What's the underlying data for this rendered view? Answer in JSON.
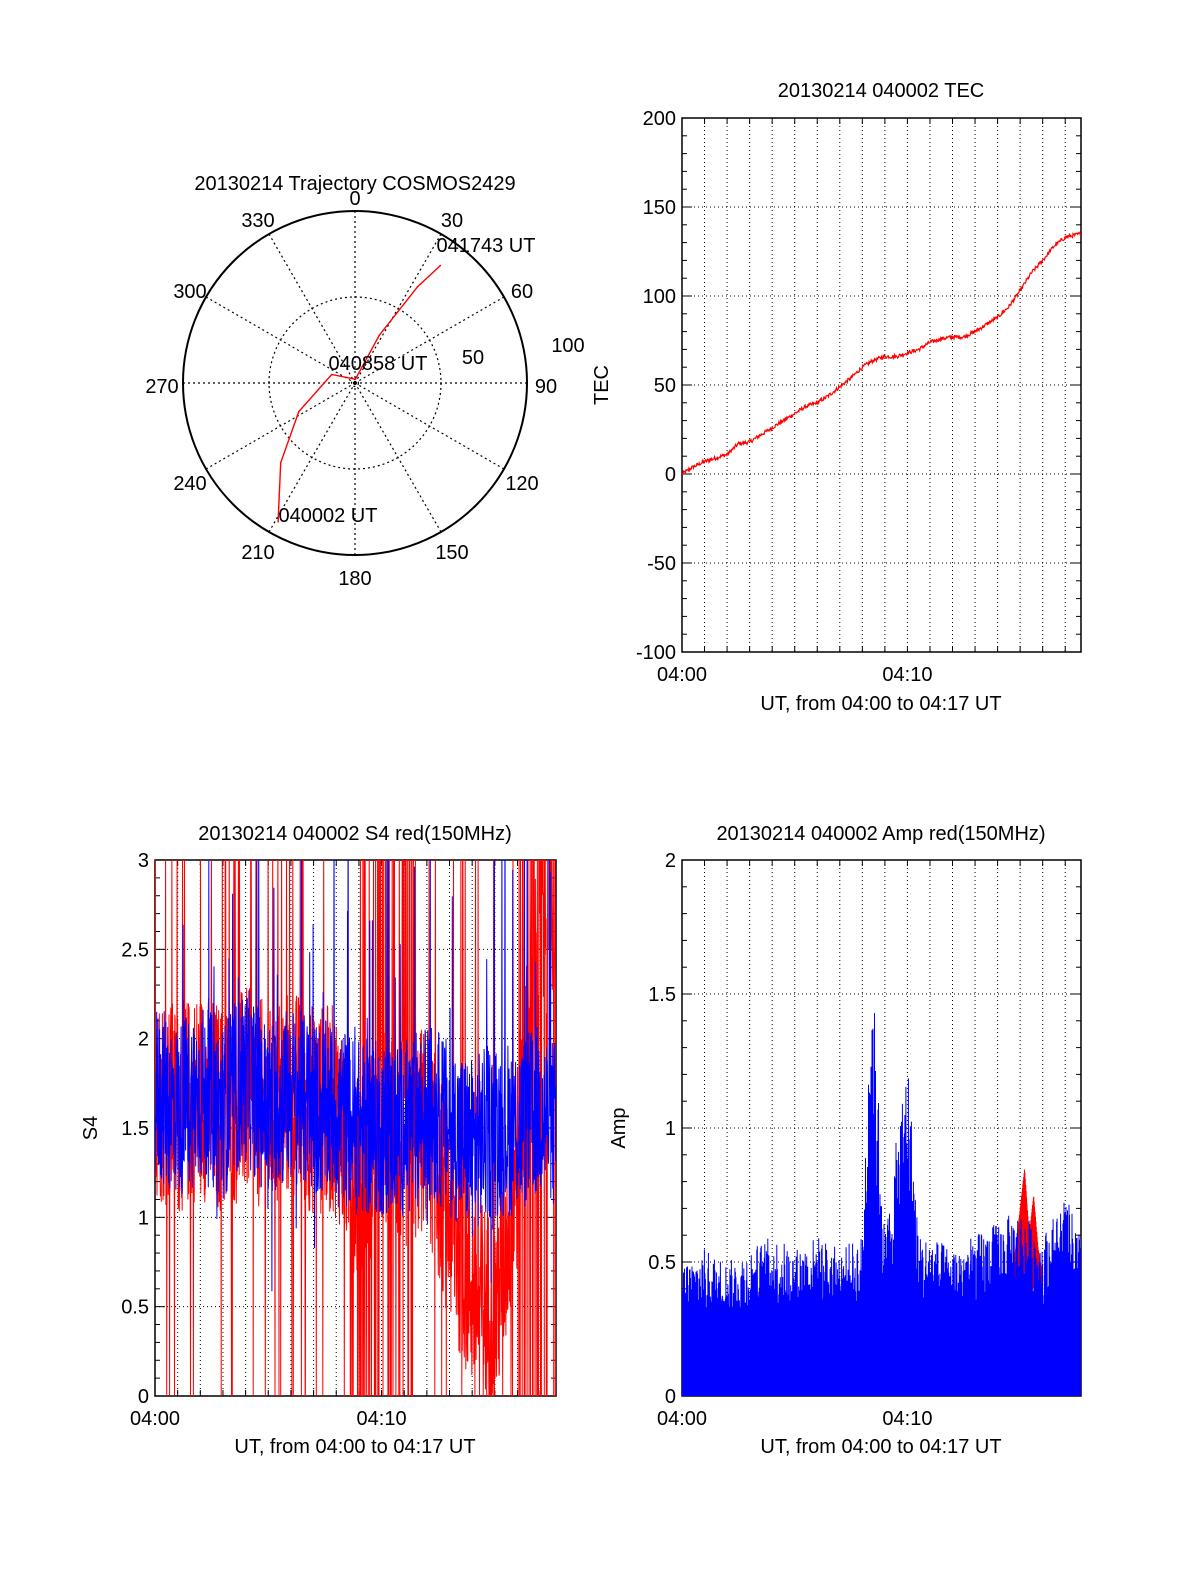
{
  "colors": {
    "red": "#ff0000",
    "blue": "#0000ff",
    "axis": "#000000",
    "grid": "#000000",
    "background": "#ffffff"
  },
  "chart_data": [
    {
      "type": "polar",
      "title": "20130214 Trajectory COSMOS2429",
      "angle_labels": [
        "0",
        "30",
        "60",
        "90",
        "120",
        "150",
        "180",
        "210",
        "240",
        "270",
        "300",
        "330"
      ],
      "radius_labels": [
        "50",
        "100"
      ],
      "grid": true,
      "series": [
        {
          "color": "red",
          "points": [
            {
              "azimuth": 209,
              "elevation": 7
            },
            {
              "azimuth": 223,
              "elevation": 33
            },
            {
              "azimuth": 243,
              "elevation": 57
            },
            {
              "azimuth": 290,
              "elevation": 77
            },
            {
              "azimuth": 6,
              "elevation": 88
            },
            {
              "azimuth": 27,
              "elevation": 62
            },
            {
              "azimuth": 33,
              "elevation": 30
            },
            {
              "azimuth": 36,
              "elevation": 14
            }
          ]
        }
      ],
      "annotations": [
        "040002 UT",
        "040858 UT",
        "041743 UT"
      ]
    },
    {
      "type": "line",
      "title": "20130214 040002 TEC",
      "xlabel": "UT, from 04:00 to 04:17 UT",
      "ylabel": "TEC",
      "x_ticks": [
        "04:00",
        "04:10"
      ],
      "y_ticks": [
        "-100",
        "-50",
        "0",
        "50",
        "100",
        "150",
        "200"
      ],
      "xlim": [
        0,
        17.7
      ],
      "ylim": [
        -100,
        200
      ],
      "grid": true,
      "series": [
        {
          "color": "red",
          "x": [
            0,
            0.5,
            1,
            1.5,
            2,
            2.5,
            3,
            3.5,
            4,
            4.5,
            5,
            5.5,
            6,
            6.5,
            7,
            7.5,
            8,
            8.5,
            9,
            9.5,
            10,
            10.5,
            11,
            11.5,
            12,
            12.5,
            13,
            13.5,
            14,
            14.5,
            15,
            15.5,
            16,
            16.5,
            17,
            17.7
          ],
          "y": [
            0,
            4,
            7,
            9,
            11,
            17,
            18,
            22,
            26,
            30,
            34,
            38,
            40,
            44,
            49,
            54,
            60,
            64,
            66,
            66,
            68,
            70,
            74,
            76,
            77,
            77,
            80,
            84,
            88,
            94,
            103,
            113,
            120,
            128,
            133,
            135
          ]
        }
      ]
    },
    {
      "type": "line",
      "title": "20130214 040002 S4 red(150MHz)",
      "xlabel": "UT, from 04:00 to 04:17 UT",
      "ylabel": "S4",
      "x_ticks": [
        "04:00",
        "04:10"
      ],
      "y_ticks": [
        "0",
        "0.5",
        "1",
        "1.5",
        "2",
        "2.5",
        "3"
      ],
      "xlim": [
        0,
        17.7
      ],
      "ylim": [
        0,
        3
      ],
      "grid": true,
      "series": [
        {
          "color": "red",
          "x": [
            0,
            1,
            2,
            3,
            4,
            5,
            6,
            7,
            8,
            9,
            10,
            11,
            12,
            13,
            14,
            15,
            16,
            17,
            17.7
          ],
          "y": [
            1.7,
            1.6,
            1.7,
            1.6,
            1.7,
            1.6,
            1.7,
            1.6,
            1.6,
            1.2,
            1.5,
            1.4,
            1.5,
            1.0,
            0.6,
            0.45,
            1.3,
            2.7,
            2.8
          ]
        },
        {
          "color": "blue",
          "x": [
            0,
            1,
            2,
            3,
            4,
            5,
            6,
            7,
            8,
            9,
            10,
            11,
            12,
            13,
            14,
            15,
            16,
            17,
            17.7
          ],
          "y": [
            1.7,
            1.6,
            1.7,
            1.6,
            1.8,
            1.6,
            1.7,
            1.6,
            1.6,
            1.5,
            1.5,
            1.5,
            1.6,
            1.5,
            1.4,
            1.5,
            1.5,
            1.6,
            1.5
          ]
        }
      ]
    },
    {
      "type": "line",
      "title": "20130214 040002 Amp red(150MHz)",
      "xlabel": "UT, from 04:00 to 04:17 UT",
      "ylabel": "Amp",
      "x_ticks": [
        "04:00",
        "04:10"
      ],
      "y_ticks": [
        "0",
        "0.5",
        "1",
        "1.5",
        "2"
      ],
      "xlim": [
        0,
        17.7
      ],
      "ylim": [
        0,
        2
      ],
      "grid": true,
      "series": [
        {
          "color": "red",
          "x": [
            14.5,
            14.8,
            15.0,
            15.2,
            15.4,
            15.6,
            15.8,
            16.0
          ],
          "y": [
            0.4,
            0.55,
            0.7,
            0.85,
            0.6,
            0.75,
            0.55,
            0.45
          ]
        },
        {
          "color": "blue",
          "x": [
            0,
            1,
            2,
            3,
            4,
            5,
            6,
            7,
            8,
            8.4,
            9,
            10,
            10.5,
            11,
            12,
            13,
            14,
            15,
            16,
            17,
            17.7
          ],
          "y": [
            0.5,
            0.55,
            0.5,
            0.55,
            0.6,
            0.55,
            0.6,
            0.55,
            0.6,
            1.7,
            0.6,
            1.3,
            0.6,
            0.6,
            0.55,
            0.6,
            0.65,
            0.7,
            0.6,
            0.75,
            0.6
          ]
        }
      ]
    }
  ]
}
